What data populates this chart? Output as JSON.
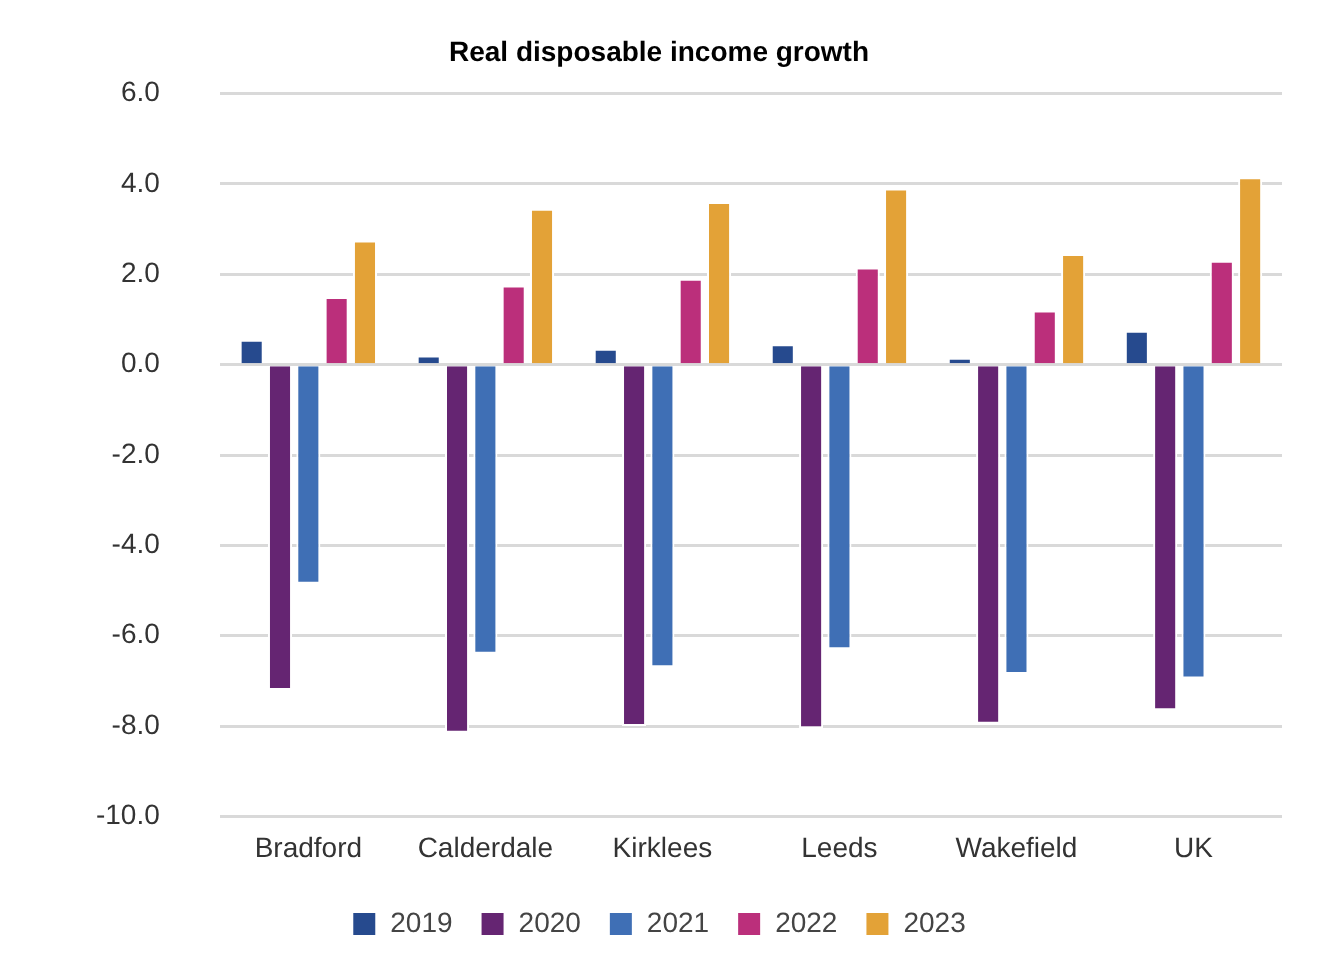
{
  "chart_data": {
    "type": "bar",
    "title": "Real disposable income growth",
    "categories": [
      "Bradford",
      "Calderdale",
      "Kirklees",
      "Leeds",
      "Wakefield",
      "UK"
    ],
    "series": [
      {
        "name": "2019",
        "color": "#264a8e",
        "values": [
          0.55,
          0.2,
          0.35,
          0.45,
          0.15,
          0.75
        ]
      },
      {
        "name": "2020",
        "color": "#652572",
        "values": [
          -7.2,
          -8.15,
          -8.0,
          -8.05,
          -7.95,
          -7.65
        ]
      },
      {
        "name": "2021",
        "color": "#3f6fb5",
        "values": [
          -4.85,
          -6.4,
          -6.7,
          -6.3,
          -6.85,
          -6.95
        ]
      },
      {
        "name": "2022",
        "color": "#bb2f7b",
        "values": [
          1.5,
          1.75,
          1.9,
          2.15,
          1.2,
          2.3
        ]
      },
      {
        "name": "2023",
        "color": "#e3a237",
        "values": [
          2.75,
          3.45,
          3.6,
          3.9,
          2.45,
          4.15
        ]
      }
    ],
    "ylim": [
      -10,
      6
    ],
    "yticks": [
      {
        "value": -10,
        "label": "-10.0"
      },
      {
        "value": -8,
        "label": "-8.0"
      },
      {
        "value": -6,
        "label": "-6.0"
      },
      {
        "value": -4,
        "label": "-4.0"
      },
      {
        "value": -2,
        "label": "-2.0"
      },
      {
        "value": 0,
        "label": "0.0"
      },
      {
        "value": 2,
        "label": "2.0"
      },
      {
        "value": 4,
        "label": "4.0"
      },
      {
        "value": 6,
        "label": "6.0"
      }
    ],
    "grid": "y",
    "legend": "bottom"
  }
}
